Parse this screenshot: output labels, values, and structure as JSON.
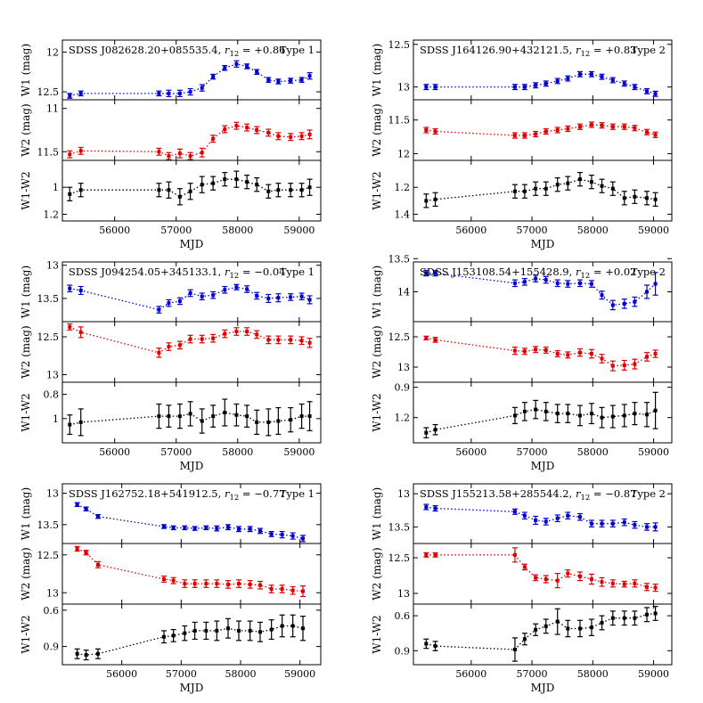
{
  "figure": {
    "xlabel": "MJD",
    "xticks": [
      56000,
      57000,
      58000,
      59000
    ],
    "row_labels": [
      "W1 (mag)",
      "W2 (mag)",
      "W1-W2"
    ],
    "colors": {
      "W1": "#0000cc",
      "W2": "#dd0000",
      "W1-W2": "#000000"
    }
  },
  "chart_data": [
    {
      "type": "scatter",
      "title": "SDSS J082628.20+085535.4, r12 = +0.86",
      "object": "SDSS J082628.20+085535.4",
      "r12_label": "r",
      "r12_sub": "12",
      "r12_value": " = +0.86",
      "type_label": "Type 1",
      "xlabel": "MJD",
      "xlim": [
        55150,
        59350
      ],
      "ylabels": [
        "W1 (mag)",
        "W2 (mag)",
        "W1-W2"
      ],
      "ylims": [
        [
          12.6,
          11.85
        ],
        [
          11.6,
          10.9
        ],
        [
          1.25,
          0.8
        ]
      ],
      "yticks": [
        [
          12.0,
          12.5
        ],
        [
          11.0,
          11.5
        ],
        [
          1.0,
          1.2
        ]
      ],
      "mjd": [
        55270,
        55450,
        56720,
        56880,
        57060,
        57230,
        57420,
        57600,
        57790,
        57980,
        58150,
        58310,
        58500,
        58660,
        58860,
        59040,
        59170
      ],
      "series": [
        {
          "name": "W1",
          "values": [
            12.55,
            12.52,
            12.52,
            12.52,
            12.52,
            12.5,
            12.45,
            12.31,
            12.2,
            12.15,
            12.18,
            12.25,
            12.35,
            12.37,
            12.36,
            12.35,
            12.3
          ],
          "errors": [
            0.03,
            0.03,
            0.03,
            0.04,
            0.04,
            0.04,
            0.04,
            0.03,
            0.03,
            0.04,
            0.03,
            0.03,
            0.03,
            0.03,
            0.03,
            0.03,
            0.04
          ]
        },
        {
          "name": "W2",
          "values": [
            11.53,
            11.49,
            11.5,
            11.55,
            11.52,
            11.55,
            11.51,
            11.35,
            11.24,
            11.2,
            11.22,
            11.25,
            11.28,
            11.32,
            11.33,
            11.32,
            11.3
          ],
          "errors": [
            0.04,
            0.04,
            0.04,
            0.04,
            0.05,
            0.04,
            0.05,
            0.04,
            0.04,
            0.04,
            0.04,
            0.04,
            0.04,
            0.04,
            0.04,
            0.04,
            0.05
          ]
        },
        {
          "name": "W1-W2",
          "values": [
            1.05,
            1.02,
            1.02,
            1.02,
            1.07,
            1.03,
            0.98,
            0.97,
            0.94,
            0.94,
            0.96,
            0.98,
            1.03,
            1.02,
            1.02,
            1.02,
            1.0
          ],
          "errors": [
            0.05,
            0.05,
            0.05,
            0.06,
            0.06,
            0.06,
            0.06,
            0.05,
            0.05,
            0.06,
            0.05,
            0.05,
            0.05,
            0.05,
            0.05,
            0.05,
            0.06
          ]
        }
      ]
    },
    {
      "type": "scatter",
      "title": "SDSS J164126.90+432121.5, r12 = +0.83",
      "object": "SDSS J164126.90+432121.5",
      "r12_label": "r",
      "r12_sub": "12",
      "r12_value": " = +0.83",
      "type_label": "Type 2",
      "xlabel": "MJD",
      "xlim": [
        55050,
        59300
      ],
      "ylabels": [
        "W1 (mag)",
        "W2 (mag)",
        "W1-W2"
      ],
      "ylims": [
        [
          13.15,
          12.45
        ],
        [
          12.1,
          11.2
        ],
        [
          1.45,
          1.0
        ]
      ],
      "yticks": [
        [
          12.5,
          13.0
        ],
        [
          11.5,
          12.0
        ],
        [
          1.2,
          1.4
        ]
      ],
      "mjd": [
        55260,
        55410,
        56720,
        56880,
        57060,
        57230,
        57420,
        57590,
        57790,
        57980,
        58150,
        58330,
        58520,
        58690,
        58890,
        59030
      ],
      "series": [
        {
          "name": "W1",
          "values": [
            13.0,
            13.0,
            13.0,
            13.0,
            12.98,
            12.96,
            12.93,
            12.9,
            12.85,
            12.85,
            12.88,
            12.92,
            12.96,
            13.0,
            13.05,
            13.08
          ],
          "errors": [
            0.03,
            0.03,
            0.03,
            0.03,
            0.03,
            0.03,
            0.03,
            0.03,
            0.03,
            0.03,
            0.03,
            0.03,
            0.03,
            0.03,
            0.03,
            0.03
          ]
        },
        {
          "name": "W2",
          "values": [
            11.65,
            11.67,
            11.73,
            11.73,
            11.71,
            11.67,
            11.65,
            11.63,
            11.6,
            11.57,
            11.58,
            11.6,
            11.6,
            11.62,
            11.68,
            11.72
          ],
          "errors": [
            0.04,
            0.04,
            0.04,
            0.04,
            0.04,
            0.04,
            0.04,
            0.04,
            0.04,
            0.04,
            0.04,
            0.04,
            0.04,
            0.04,
            0.04,
            0.04
          ]
        },
        {
          "name": "W1-W2",
          "values": [
            1.3,
            1.29,
            1.23,
            1.23,
            1.21,
            1.21,
            1.18,
            1.17,
            1.14,
            1.16,
            1.19,
            1.21,
            1.28,
            1.27,
            1.28,
            1.29
          ],
          "errors": [
            0.05,
            0.05,
            0.05,
            0.05,
            0.05,
            0.05,
            0.05,
            0.05,
            0.05,
            0.05,
            0.05,
            0.05,
            0.05,
            0.05,
            0.05,
            0.05
          ]
        }
      ]
    },
    {
      "type": "scatter",
      "title": "SDSS J094254.05+345133.1, r12 = -0.04",
      "object": "SDSS J094254.05+345133.1",
      "r12_label": "r",
      "r12_sub": "12",
      "r12_value": " = −0.04",
      "type_label": "Type 1",
      "xlabel": "MJD",
      "xlim": [
        55150,
        59350
      ],
      "ylabels": [
        "W1 (mag)",
        "W2 (mag)",
        "W1-W2"
      ],
      "ylims": [
        [
          13.85,
          12.95
        ],
        [
          13.1,
          12.3
        ],
        [
          1.2,
          0.7
        ]
      ],
      "yticks": [
        [
          13.0,
          13.5
        ],
        [
          12.5,
          13.0
        ],
        [
          0.8,
          1.0
        ]
      ],
      "mjd": [
        55270,
        55450,
        56720,
        56880,
        57060,
        57230,
        57420,
        57600,
        57790,
        57980,
        58150,
        58310,
        58500,
        58660,
        58860,
        59040,
        59170
      ],
      "series": [
        {
          "name": "W1",
          "values": [
            13.35,
            13.38,
            13.67,
            13.57,
            13.54,
            13.42,
            13.47,
            13.45,
            13.37,
            13.33,
            13.36,
            13.46,
            13.5,
            13.49,
            13.48,
            13.47,
            13.52
          ],
          "errors": [
            0.05,
            0.06,
            0.05,
            0.05,
            0.05,
            0.05,
            0.05,
            0.05,
            0.05,
            0.04,
            0.05,
            0.05,
            0.06,
            0.06,
            0.05,
            0.05,
            0.06
          ]
        },
        {
          "name": "W2",
          "values": [
            12.37,
            12.44,
            12.71,
            12.63,
            12.61,
            12.53,
            12.53,
            12.52,
            12.46,
            12.43,
            12.43,
            12.47,
            12.54,
            12.54,
            12.54,
            12.55,
            12.58
          ],
          "errors": [
            0.04,
            0.07,
            0.06,
            0.05,
            0.05,
            0.05,
            0.05,
            0.05,
            0.05,
            0.05,
            0.05,
            0.05,
            0.05,
            0.05,
            0.05,
            0.05,
            0.06
          ]
        },
        {
          "name": "W1-W2",
          "values": [
            1.05,
            1.03,
            0.98,
            0.98,
            0.98,
            0.96,
            1.02,
            0.98,
            0.95,
            0.97,
            0.98,
            1.03,
            1.03,
            1.02,
            1.01,
            0.98,
            0.98
          ],
          "errors": [
            0.08,
            0.11,
            0.1,
            0.09,
            0.1,
            0.1,
            0.1,
            0.09,
            0.11,
            0.09,
            0.09,
            0.1,
            0.11,
            0.11,
            0.1,
            0.1,
            0.12
          ]
        }
      ]
    },
    {
      "type": "scatter",
      "title": "SDSS J153108.54+155428.9, r12 = +0.02",
      "object": "SDSS J153108.54+155428.9",
      "r12_label": "r",
      "r12_sub": "12",
      "r12_value": " = +0.02",
      "type_label": "Type 2",
      "xlabel": "MJD",
      "xlim": [
        55050,
        59300
      ],
      "ylabels": [
        "W1 (mag)",
        "W2 (mag)",
        "W1-W2"
      ],
      "ylims": [
        [
          14.45,
          13.55
        ],
        [
          13.25,
          12.25
        ],
        [
          1.45,
          0.85
        ]
      ],
      "yticks": [
        [
          13.5,
          14.0
        ],
        [
          12.5,
          13.0
        ],
        [
          0.9,
          1.2
        ]
      ],
      "mjd": [
        55260,
        55410,
        56720,
        56880,
        57060,
        57230,
        57420,
        57590,
        57790,
        57980,
        58150,
        58330,
        58520,
        58690,
        58890,
        59030
      ],
      "series": [
        {
          "name": "W1",
          "values": [
            13.72,
            13.72,
            13.87,
            13.85,
            13.8,
            13.82,
            13.87,
            13.88,
            13.87,
            13.88,
            14.05,
            14.2,
            14.18,
            14.15,
            14.0,
            13.88
          ],
          "errors": [
            0.04,
            0.04,
            0.05,
            0.05,
            0.05,
            0.05,
            0.05,
            0.05,
            0.05,
            0.05,
            0.06,
            0.07,
            0.07,
            0.07,
            0.1,
            0.17
          ]
        },
        {
          "name": "W2",
          "values": [
            12.52,
            12.55,
            12.73,
            12.74,
            12.71,
            12.72,
            12.78,
            12.8,
            12.76,
            12.78,
            12.86,
            12.98,
            12.97,
            12.95,
            12.83,
            12.78
          ],
          "errors": [
            0.03,
            0.04,
            0.06,
            0.05,
            0.05,
            0.05,
            0.05,
            0.05,
            0.06,
            0.07,
            0.07,
            0.08,
            0.08,
            0.08,
            0.07,
            0.06
          ]
        },
        {
          "name": "W1-W2",
          "values": [
            1.35,
            1.32,
            1.18,
            1.14,
            1.12,
            1.14,
            1.16,
            1.16,
            1.18,
            1.16,
            1.2,
            1.19,
            1.18,
            1.16,
            1.17,
            1.13
          ],
          "errors": [
            0.05,
            0.05,
            0.08,
            0.09,
            0.09,
            0.09,
            0.09,
            0.09,
            0.1,
            0.1,
            0.1,
            0.11,
            0.11,
            0.11,
            0.12,
            0.18
          ]
        }
      ]
    },
    {
      "type": "scatter",
      "title": "SDSS J162752.18+541912.5, r12 = -0.77",
      "object": "SDSS J162752.18+541912.5",
      "r12_label": "r",
      "r12_sub": "12",
      "r12_value": " = −0.77",
      "type_label": "Type 1",
      "xlabel": "MJD",
      "xlim": [
        55000,
        59350
      ],
      "ylabels": [
        "W1 (mag)",
        "W2 (mag)",
        "W1-W2"
      ],
      "ylims": [
        [
          13.8,
          12.85
        ],
        [
          13.15,
          12.35
        ],
        [
          1.05,
          0.55
        ]
      ],
      "yticks": [
        [
          13.0,
          13.5
        ],
        [
          12.5,
          13.0
        ],
        [
          0.6,
          0.9
        ]
      ],
      "mjd": [
        55250,
        55400,
        55600,
        56710,
        56870,
        57060,
        57230,
        57420,
        57600,
        57790,
        57970,
        58160,
        58330,
        58520,
        58700,
        58880,
        59050
      ],
      "series": [
        {
          "name": "W1",
          "values": [
            13.18,
            13.25,
            13.37,
            13.53,
            13.55,
            13.55,
            13.56,
            13.55,
            13.56,
            13.54,
            13.57,
            13.57,
            13.6,
            13.65,
            13.66,
            13.68,
            13.72
          ],
          "errors": [
            0.03,
            0.03,
            0.03,
            0.03,
            0.03,
            0.03,
            0.03,
            0.03,
            0.04,
            0.04,
            0.04,
            0.04,
            0.04,
            0.04,
            0.05,
            0.05,
            0.05
          ]
        },
        {
          "name": "W2",
          "values": [
            12.42,
            12.47,
            12.63,
            12.82,
            12.84,
            12.88,
            12.88,
            12.88,
            12.88,
            12.89,
            12.88,
            12.89,
            12.9,
            12.95,
            12.95,
            12.97,
            12.98
          ],
          "errors": [
            0.03,
            0.03,
            0.04,
            0.04,
            0.04,
            0.05,
            0.05,
            0.05,
            0.05,
            0.05,
            0.05,
            0.05,
            0.05,
            0.05,
            0.05,
            0.05,
            0.07
          ]
        },
        {
          "name": "W1-W2",
          "values": [
            0.96,
            0.97,
            0.96,
            0.82,
            0.81,
            0.79,
            0.77,
            0.77,
            0.77,
            0.75,
            0.77,
            0.77,
            0.78,
            0.76,
            0.73,
            0.73,
            0.75
          ],
          "errors": [
            0.04,
            0.04,
            0.04,
            0.05,
            0.05,
            0.06,
            0.07,
            0.07,
            0.08,
            0.08,
            0.08,
            0.08,
            0.08,
            0.08,
            0.09,
            0.09,
            0.1
          ]
        }
      ]
    },
    {
      "type": "scatter",
      "title": "SDSS J155213.58+285544.2, r12 = -0.87",
      "object": "SDSS J155213.58+285544.2",
      "r12_label": "r",
      "r12_sub": "12",
      "r12_value": " = −0.87",
      "type_label": "Type 2",
      "xlabel": "MJD",
      "xlim": [
        55050,
        59300
      ],
      "ylabels": [
        "W1 (mag)",
        "W2 (mag)",
        "W1-W2"
      ],
      "ylims": [
        [
          13.75,
          12.85
        ],
        [
          13.15,
          12.3
        ],
        [
          1.02,
          0.5
        ]
      ],
      "yticks": [
        [
          13.0,
          13.5
        ],
        [
          12.5,
          13.0
        ],
        [
          0.6,
          0.9
        ]
      ],
      "mjd": [
        55260,
        55410,
        56720,
        56880,
        57060,
        57230,
        57420,
        57590,
        57790,
        57980,
        58150,
        58330,
        58520,
        58690,
        58890,
        59030
      ],
      "series": [
        {
          "name": "W1",
          "values": [
            13.2,
            13.22,
            13.27,
            13.33,
            13.4,
            13.42,
            13.37,
            13.33,
            13.35,
            13.45,
            13.45,
            13.45,
            13.43,
            13.47,
            13.5,
            13.5
          ],
          "errors": [
            0.04,
            0.04,
            0.04,
            0.05,
            0.06,
            0.05,
            0.05,
            0.05,
            0.05,
            0.05,
            0.05,
            0.05,
            0.05,
            0.05,
            0.05,
            0.06
          ]
        },
        {
          "name": "W2",
          "values": [
            12.46,
            12.46,
            12.46,
            12.63,
            12.78,
            12.8,
            12.82,
            12.72,
            12.76,
            12.8,
            12.84,
            12.86,
            12.87,
            12.86,
            12.91,
            12.92
          ],
          "errors": [
            0.03,
            0.03,
            0.1,
            0.04,
            0.04,
            0.05,
            0.1,
            0.05,
            0.06,
            0.07,
            0.06,
            0.05,
            0.04,
            0.05,
            0.05,
            0.05
          ]
        },
        {
          "name": "W1-W2",
          "values": [
            0.84,
            0.86,
            0.89,
            0.8,
            0.72,
            0.69,
            0.65,
            0.71,
            0.71,
            0.7,
            0.66,
            0.62,
            0.62,
            0.62,
            0.59,
            0.58
          ],
          "errors": [
            0.04,
            0.04,
            0.1,
            0.05,
            0.05,
            0.06,
            0.11,
            0.07,
            0.07,
            0.07,
            0.06,
            0.06,
            0.06,
            0.06,
            0.06,
            0.06
          ]
        }
      ]
    }
  ]
}
